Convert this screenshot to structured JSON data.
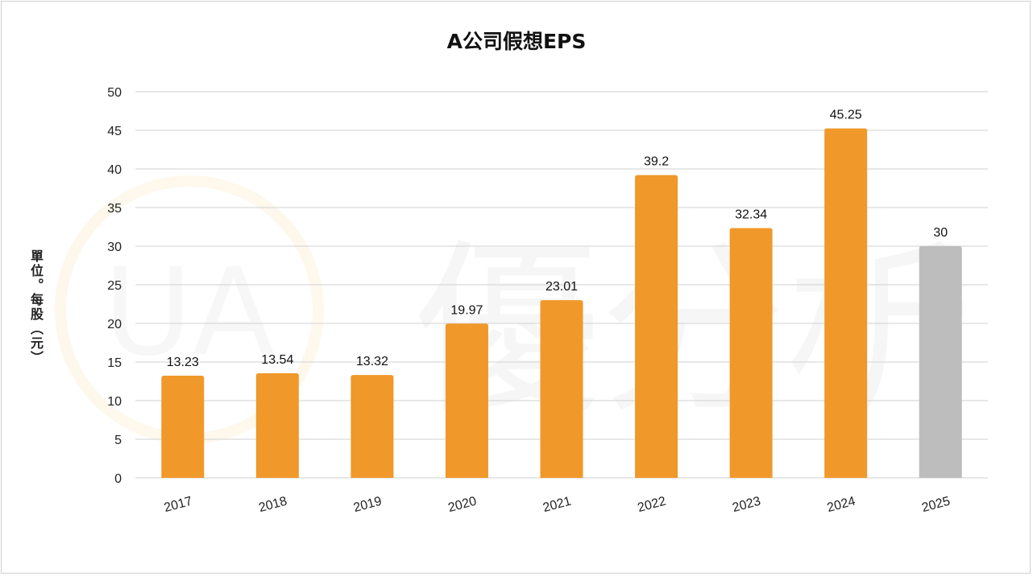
{
  "chart_data": {
    "type": "bar",
    "title": "A公司假想EPS",
    "ylabel": "單位。每股（元）",
    "xlabel": "",
    "categories": [
      "2017",
      "2018",
      "2019",
      "2020",
      "2021",
      "2022",
      "2023",
      "2024",
      "2025"
    ],
    "values": [
      13.23,
      13.54,
      13.32,
      19.97,
      23.01,
      39.2,
      32.34,
      45.25,
      30
    ],
    "data_labels": [
      "13.23",
      "13.54",
      "13.32",
      "19.97",
      "23.01",
      "39.2",
      "32.34",
      "45.25",
      "30"
    ],
    "ylim": [
      0,
      50
    ],
    "yticks": [
      "0",
      "5",
      "10",
      "15",
      "20",
      "25",
      "30",
      "35",
      "40",
      "45",
      "50"
    ],
    "grid": true,
    "legend": "none",
    "colors": {
      "actual": "#F0982A",
      "forecast": "#BDBDBD",
      "grid": "#d9d9d9"
    },
    "forecast_index": 8,
    "watermark": "優分析"
  }
}
